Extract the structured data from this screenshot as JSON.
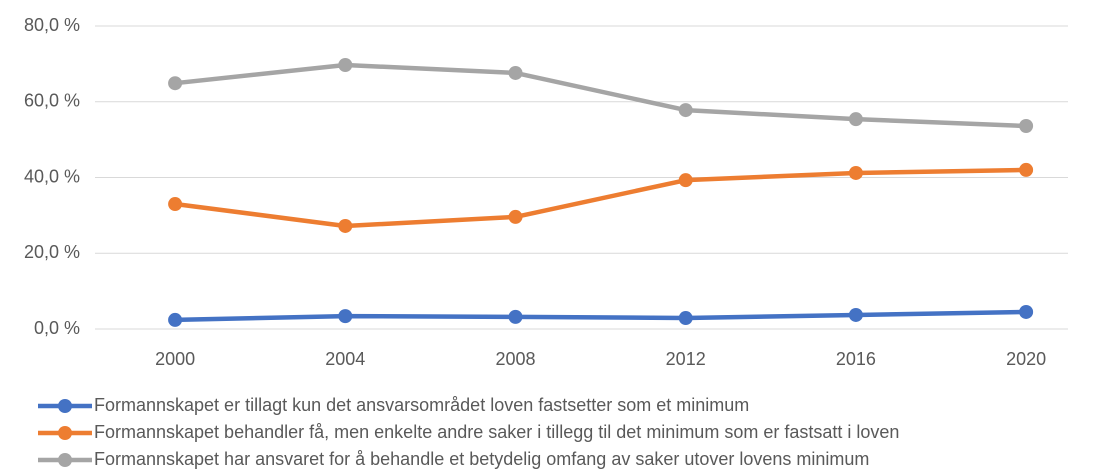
{
  "chart_data": {
    "type": "line",
    "categories": [
      "2000",
      "2004",
      "2008",
      "2012",
      "2016",
      "2020"
    ],
    "series": [
      {
        "name": "Formannskapet er tillagt kun det ansvarsområdet loven fastsetter som et minimum",
        "color": "#4472c4",
        "values": [
          2.4,
          3.4,
          3.2,
          2.9,
          3.7,
          4.5
        ]
      },
      {
        "name": "Formannskapet behandler få, men enkelte andre saker i tillegg til det minimum som er fastsatt i loven",
        "color": "#ed7d31",
        "values": [
          33.0,
          27.2,
          29.6,
          39.3,
          41.2,
          42.0
        ]
      },
      {
        "name": "Formannskapet har ansvaret for å behandle et betydelig omfang av saker utover lovens minimum",
        "color": "#a5a5a5",
        "values": [
          64.9,
          69.7,
          67.6,
          57.8,
          55.4,
          53.6
        ]
      }
    ],
    "ylim": [
      0,
      80
    ],
    "yticks": [
      {
        "value": 0,
        "label": "0,0 %"
      },
      {
        "value": 20,
        "label": "20,0 %"
      },
      {
        "value": 40,
        "label": "40,0 %"
      },
      {
        "value": 60,
        "label": "60,0 %"
      },
      {
        "value": 80,
        "label": "80,0 %"
      }
    ],
    "grid": true,
    "legend": "bottom"
  }
}
